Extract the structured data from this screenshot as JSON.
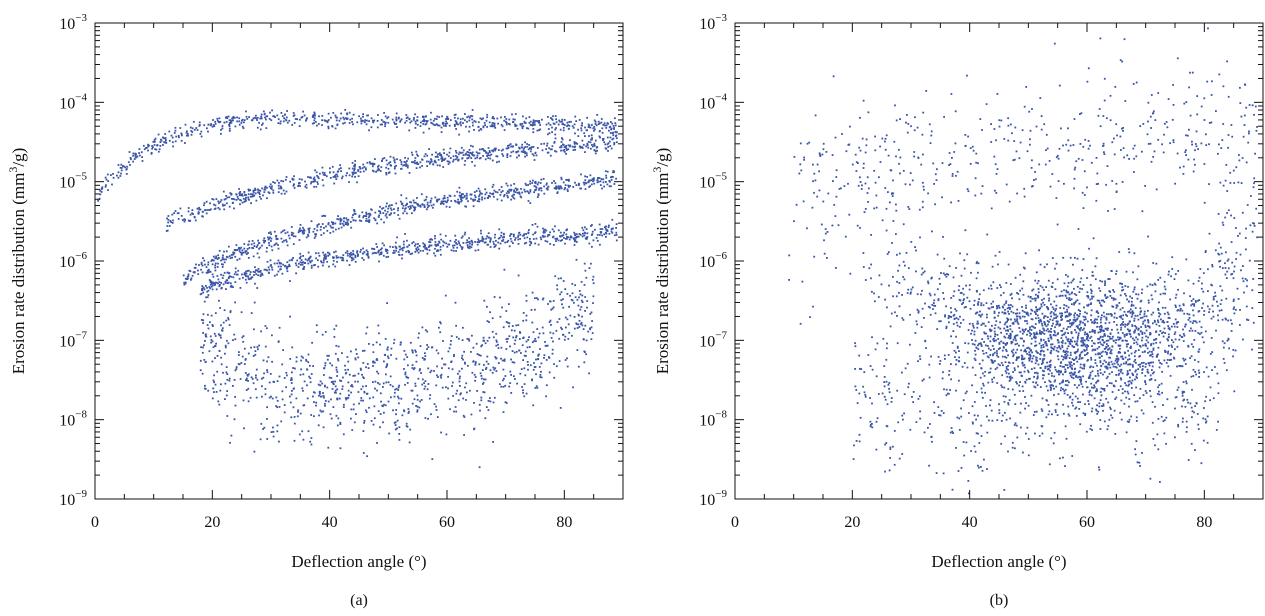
{
  "figure": {
    "point_color": "#3a55a8",
    "axis_color": "#111111"
  },
  "chart_data": [
    {
      "type": "scatter",
      "panel_label": "(a)",
      "xlabel": "Deflection angle (°)",
      "ylabel_prefix": "Erosion rate distribution (mm",
      "ylabel_sup": "3",
      "ylabel_suffix": "/g)",
      "xlim": [
        0,
        90
      ],
      "ylim": [
        1e-09,
        0.001
      ],
      "yscale": "log",
      "x_ticks": [
        0,
        20,
        40,
        60,
        80
      ],
      "y_ticks": [
        {
          "base": "10",
          "exp": "−9"
        },
        {
          "base": "10",
          "exp": "−8"
        },
        {
          "base": "10",
          "exp": "−7"
        },
        {
          "base": "10",
          "exp": "−6"
        },
        {
          "base": "10",
          "exp": "−5"
        },
        {
          "base": "10",
          "exp": "−4"
        },
        {
          "base": "10",
          "exp": "−3"
        }
      ],
      "grid": false,
      "series": [
        {
          "x": [
            0.5,
            2,
            4,
            6,
            8,
            10,
            12,
            14,
            16,
            18,
            20,
            22,
            25,
            30,
            35,
            40,
            45,
            50,
            55,
            60,
            65,
            70,
            75,
            80,
            85,
            89
          ],
          "y": [
            6e-06,
            1e-05,
            1.4e-05,
            1.8e-05,
            2.3e-05,
            2.8e-05,
            3.4e-05,
            3.9e-05,
            4.4e-05,
            4.9e-05,
            5.3e-05,
            5.5e-05,
            5.8e-05,
            6e-05,
            6.1e-05,
            6.1e-05,
            6e-05,
            5.9e-05,
            5.8e-05,
            5.7e-05,
            5.6e-05,
            5.5e-05,
            5.3e-05,
            5.1e-05,
            4.9e-05,
            4.8e-05
          ]
        },
        {
          "x": [
            12,
            15,
            18,
            20,
            25,
            30,
            35,
            40,
            45,
            50,
            55,
            60,
            65,
            70,
            75,
            80,
            85,
            89
          ],
          "y": [
            3e-06,
            3.6e-06,
            4.2e-06,
            5e-06,
            6.5e-06,
            8e-06,
            1e-05,
            1.2e-05,
            1.4e-05,
            1.6e-05,
            1.8e-05,
            2e-05,
            2.2e-05,
            2.4e-05,
            2.6e-05,
            2.8e-05,
            3e-05,
            3.2e-05
          ]
        },
        {
          "x": [
            15,
            18,
            20,
            25,
            30,
            35,
            40,
            45,
            50,
            55,
            60,
            65,
            70,
            75,
            80,
            85,
            89
          ],
          "y": [
            6e-07,
            8e-07,
            9e-07,
            1.3e-06,
            1.8e-06,
            2.3e-06,
            2.9e-06,
            3.5e-06,
            4.2e-06,
            5e-06,
            5.8e-06,
            6.6e-06,
            7.4e-06,
            8.2e-06,
            9e-06,
            1e-05,
            1.1e-05
          ]
        },
        {
          "x": [
            18,
            20,
            25,
            30,
            35,
            40,
            45,
            50,
            55,
            60,
            65,
            70,
            75,
            80,
            85,
            89
          ],
          "y": [
            4e-07,
            5e-07,
            6.5e-07,
            8e-07,
            9.5e-07,
            1.1e-06,
            1.2e-06,
            1.35e-06,
            1.5e-06,
            1.6e-06,
            1.75e-06,
            1.9e-06,
            2e-06,
            2.1e-06,
            2.25e-06,
            2.4e-06
          ]
        },
        {
          "x": [
            18,
            22,
            26,
            30,
            35,
            40,
            45,
            50,
            55,
            60,
            65,
            70,
            75,
            80,
            85
          ],
          "y": [
            1.5e-07,
            6e-08,
            4e-08,
            3e-08,
            2.5e-08,
            2.5e-08,
            2.6e-08,
            2.8e-08,
            3.1e-08,
            3.5e-08,
            4.5e-08,
            6e-08,
            8e-08,
            1.5e-07,
            4e-07
          ]
        }
      ]
    },
    {
      "type": "scatter",
      "panel_label": "(b)",
      "xlabel": "Deflection angle (°)",
      "ylabel_prefix": "Erosion rate distribution (mm",
      "ylabel_sup": "3",
      "ylabel_suffix": "/g)",
      "xlim": [
        0,
        90
      ],
      "ylim": [
        1e-09,
        0.001
      ],
      "yscale": "log",
      "x_ticks": [
        0,
        20,
        40,
        60,
        80
      ],
      "y_ticks": [
        {
          "base": "10",
          "exp": "−9"
        },
        {
          "base": "10",
          "exp": "−8"
        },
        {
          "base": "10",
          "exp": "−7"
        },
        {
          "base": "10",
          "exp": "−6"
        },
        {
          "base": "10",
          "exp": "−5"
        },
        {
          "base": "10",
          "exp": "−4"
        },
        {
          "base": "10",
          "exp": "−3"
        }
      ],
      "grid": false,
      "series": [
        {
          "x": [
            5,
            10,
            15,
            20,
            25,
            30,
            35,
            40,
            45,
            50,
            55,
            60,
            65,
            70,
            75,
            80,
            85,
            89
          ],
          "y": [
            3e-07,
            6e-07,
            1e-06,
            1.5e-06,
            8e-07,
            4e-07,
            2e-07,
            1.5e-07,
            1.2e-07,
            1.1e-07,
            1e-07,
            1e-07,
            1.05e-07,
            1.1e-07,
            1.3e-07,
            2e-07,
            1e-06,
            5e-06
          ]
        },
        {
          "x": [
            20,
            30,
            40,
            50,
            60,
            70,
            80,
            89
          ],
          "y": [
            2e-08,
            1.5e-08,
            1.2e-08,
            1.5e-08,
            2e-08,
            1.5e-08,
            1.2e-08,
            8e-07
          ]
        },
        {
          "x": [
            10,
            20,
            30,
            40,
            50,
            60,
            70,
            80,
            89
          ],
          "y": [
            1e-05,
            1.2e-05,
            1.5e-05,
            2e-05,
            2.5e-05,
            3e-05,
            3.5e-05,
            4e-05,
            4.5e-05
          ]
        }
      ]
    }
  ]
}
